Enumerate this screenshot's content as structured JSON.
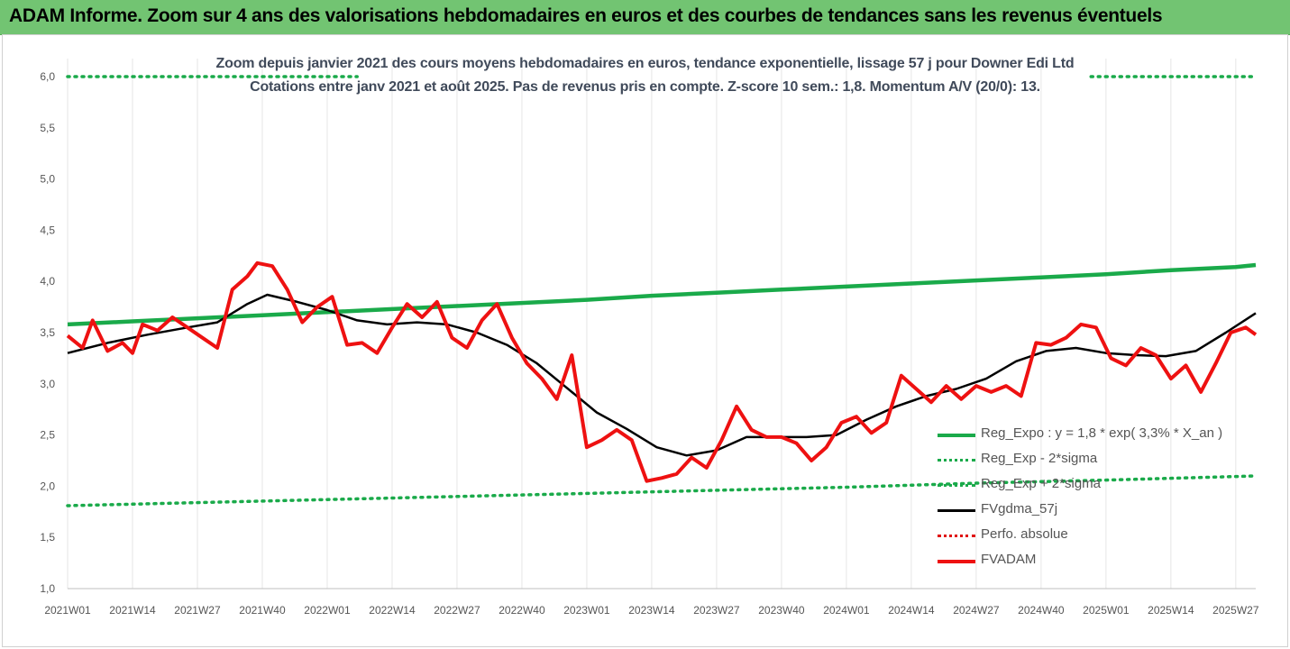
{
  "banner": {
    "text": "ADAM Informe. Zoom sur 4 ans des valorisations hebdomadaires en euros et des courbes de tendances sans les revenus éventuels"
  },
  "chart_titles": {
    "line1": "Zoom depuis janvier 2021 des cours moyens hebdomadaires en euros, tendance exponentielle, lissage 57 j pour Downer Edi Ltd",
    "line2": "Cotations entre janv 2021 et août 2025. Pas de revenus pris en compte. Z-score 10 sem.: 1,8. Momentum A/V (20/0): 13."
  },
  "legend": [
    {
      "label": "Reg_Expo : y = 1,8 * exp( 3,3% *  X_an )",
      "color": "#1aaa4a",
      "style": "solid-thick"
    },
    {
      "label": "Reg_Exp - 2*sigma",
      "color": "#1aaa4a",
      "style": "dotted"
    },
    {
      "label": "Reg_Exp + 2*sigma",
      "color": "#1aaa4a",
      "style": "dotted"
    },
    {
      "label": "FVgdma_57j",
      "color": "#000000",
      "style": "solid"
    },
    {
      "label": "Perfo. absolue",
      "color": "#e01010",
      "style": "dotted"
    },
    {
      "label": "FVADAM",
      "color": "#ee1111",
      "style": "solid-thick"
    }
  ],
  "chart_data": {
    "type": "line",
    "title": "Zoom depuis janvier 2021 des cours moyens hebdomadaires en euros, tendance exponentielle, lissage 57 j pour Downer Edi Ltd",
    "ylim": [
      1.0,
      6.0
    ],
    "yticks": [
      "1,0",
      "1,5",
      "2,0",
      "2,5",
      "3,0",
      "3,5",
      "4,0",
      "4,5",
      "5,0",
      "5,5",
      "6,0"
    ],
    "x_ticks": [
      "2021W01",
      "2021W14",
      "2021W27",
      "2021W40",
      "2022W01",
      "2022W14",
      "2022W27",
      "2022W40",
      "2023W01",
      "2023W14",
      "2023W27",
      "2023W40",
      "2024W01",
      "2024W14",
      "2024W27",
      "2024W40",
      "2025W01",
      "2025W14",
      "2025W27"
    ],
    "grid": "vertical",
    "legend_position": "bottom-right",
    "series": [
      {
        "name": "Reg_Expo : y = 1,8 * exp( 3,3% *  X_an )",
        "color": "#1aaa4a",
        "x": [
          0,
          13,
          26,
          39,
          52,
          65,
          78,
          91,
          104,
          117,
          130,
          143,
          156,
          169,
          182,
          195,
          208,
          221,
          234,
          238
        ],
        "y": [
          3.58,
          3.61,
          3.64,
          3.67,
          3.7,
          3.73,
          3.76,
          3.79,
          3.82,
          3.86,
          3.89,
          3.92,
          3.95,
          3.98,
          4.01,
          4.04,
          4.07,
          4.11,
          4.14,
          4.16
        ]
      },
      {
        "name": "Reg_Exp - 2*sigma",
        "color": "#1aaa4a",
        "x": [
          0,
          26,
          52,
          78,
          104,
          130,
          156,
          182,
          208,
          238
        ],
        "y": [
          1.81,
          1.84,
          1.87,
          1.9,
          1.93,
          1.96,
          1.99,
          2.03,
          2.06,
          2.1
        ]
      },
      {
        "name": "Reg_Exp + 2*sigma",
        "color": "#1aaa4a",
        "x": [
          0,
          238
        ],
        "y": [
          6.0,
          6.0
        ]
      },
      {
        "name": "FVgdma_57j",
        "color": "#000000",
        "x": [
          0,
          8,
          16,
          24,
          30,
          36,
          40,
          46,
          52,
          58,
          64,
          70,
          76,
          82,
          88,
          94,
          100,
          106,
          112,
          118,
          124,
          130,
          136,
          142,
          148,
          154,
          160,
          166,
          172,
          178,
          184,
          190,
          196,
          202,
          208,
          214,
          220,
          226,
          232,
          238
        ],
        "y": [
          3.3,
          3.4,
          3.48,
          3.55,
          3.6,
          3.78,
          3.87,
          3.8,
          3.72,
          3.62,
          3.58,
          3.6,
          3.58,
          3.5,
          3.38,
          3.2,
          2.96,
          2.72,
          2.56,
          2.38,
          2.3,
          2.35,
          2.48,
          2.48,
          2.48,
          2.5,
          2.65,
          2.78,
          2.88,
          2.95,
          3.05,
          3.22,
          3.32,
          3.35,
          3.3,
          3.28,
          3.27,
          3.32,
          3.5,
          3.69
        ]
      },
      {
        "name": "Perfo. absolue",
        "color": "#e01010",
        "x": [],
        "y": []
      },
      {
        "name": "FVADAM",
        "color": "#ee1111",
        "x": [
          0,
          3,
          5,
          8,
          11,
          13,
          15,
          18,
          21,
          24,
          27,
          30,
          33,
          36,
          38,
          41,
          44,
          47,
          50,
          53,
          56,
          59,
          62,
          65,
          68,
          71,
          74,
          77,
          80,
          83,
          86,
          89,
          92,
          95,
          98,
          101,
          104,
          107,
          110,
          113,
          116,
          119,
          122,
          125,
          128,
          131,
          134,
          137,
          140,
          143,
          146,
          149,
          152,
          155,
          158,
          161,
          164,
          167,
          170,
          173,
          176,
          179,
          182,
          185,
          188,
          191,
          194,
          197,
          200,
          203,
          206,
          209,
          212,
          215,
          218,
          221,
          224,
          227,
          230,
          233,
          236,
          238
        ],
        "y": [
          3.47,
          3.35,
          3.62,
          3.32,
          3.4,
          3.3,
          3.58,
          3.52,
          3.65,
          3.55,
          3.45,
          3.35,
          3.92,
          4.05,
          4.18,
          4.15,
          3.92,
          3.6,
          3.75,
          3.85,
          3.38,
          3.4,
          3.3,
          3.55,
          3.78,
          3.65,
          3.8,
          3.45,
          3.35,
          3.62,
          3.78,
          3.45,
          3.2,
          3.05,
          2.85,
          3.28,
          2.38,
          2.45,
          2.55,
          2.45,
          2.05,
          2.08,
          2.12,
          2.28,
          2.18,
          2.45,
          2.78,
          2.55,
          2.48,
          2.48,
          2.42,
          2.25,
          2.38,
          2.62,
          2.68,
          2.52,
          2.62,
          3.08,
          2.95,
          2.82,
          2.98,
          2.85,
          2.98,
          2.92,
          2.98,
          2.88,
          3.4,
          3.38,
          3.45,
          3.58,
          3.55,
          3.25,
          3.18,
          3.35,
          3.28,
          3.05,
          3.18,
          2.92,
          3.2,
          3.5,
          3.55,
          3.48
        ]
      }
    ]
  }
}
